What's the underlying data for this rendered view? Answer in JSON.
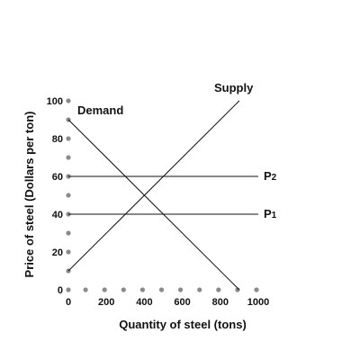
{
  "chart_data": {
    "type": "line",
    "title": "",
    "xlabel": "Quantity of steel (tons)",
    "ylabel": "Price of steel (Dollars per ton)",
    "xlim": [
      0,
      1000
    ],
    "ylim": [
      0,
      100
    ],
    "x_ticks": [
      {
        "value": 0,
        "label": "0"
      },
      {
        "value": 200,
        "label": "200"
      },
      {
        "value": 400,
        "label": "400"
      },
      {
        "value": 600,
        "label": "600"
      },
      {
        "value": 800,
        "label": "800"
      },
      {
        "value": 1000,
        "label": "1000"
      }
    ],
    "y_ticks": [
      {
        "value": 0,
        "label": "0"
      },
      {
        "value": 20,
        "label": "20"
      },
      {
        "value": 40,
        "label": "40"
      },
      {
        "value": 60,
        "label": "60"
      },
      {
        "value": 80,
        "label": "80"
      },
      {
        "value": 100,
        "label": "100"
      }
    ],
    "x_axis_points": [
      100,
      200,
      300,
      400,
      500,
      600,
      700,
      800,
      900,
      1000
    ],
    "y_axis_points": [
      10,
      20,
      30,
      40,
      50,
      60,
      70,
      80,
      90,
      100
    ],
    "grid": false,
    "series": [
      {
        "name": "Supply",
        "x": [
          0,
          900
        ],
        "y": [
          10,
          100
        ]
      },
      {
        "name": "Demand",
        "x": [
          0,
          900
        ],
        "y": [
          90,
          0
        ]
      },
      {
        "name": "P2",
        "x": [
          0,
          1000
        ],
        "y": [
          60,
          60
        ]
      },
      {
        "name": "P1",
        "x": [
          0,
          1000
        ],
        "y": [
          40,
          40
        ]
      }
    ],
    "labels": {
      "supply": "Supply",
      "demand": "Demand",
      "p2": "P",
      "p2_sub": "2",
      "p1": "P",
      "p1_sub": "1"
    }
  }
}
